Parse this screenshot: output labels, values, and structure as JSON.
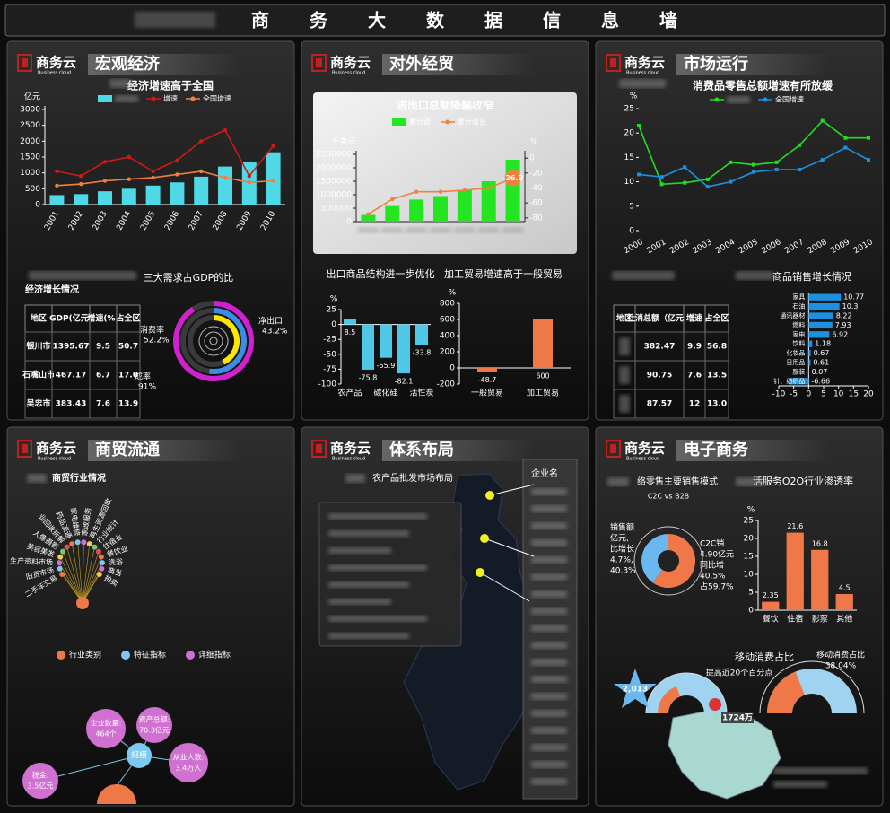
{
  "header": {
    "title": "商务大数据信息墙"
  },
  "brand": {
    "name": "商务云",
    "tagline": "Business cloud"
  },
  "panels": [
    {
      "title": "宏观经济"
    },
    {
      "title": "对外经贸"
    },
    {
      "title": "市场运行"
    },
    {
      "title": "商贸流通"
    },
    {
      "title": "体系布局"
    },
    {
      "title": "电子商务"
    }
  ],
  "chart_data": [
    {
      "type": "combo",
      "title": "经济增速高于全国",
      "y_label": "亿元",
      "categories": [
        "2001",
        "2002",
        "2003",
        "2004",
        "2005",
        "2006",
        "2007",
        "2008",
        "2009",
        "2010"
      ],
      "series": [
        {
          "type": "bar",
          "color": "#4fd8e6",
          "values": [
            300,
            330,
            420,
            500,
            600,
            700,
            880,
            1200,
            1350,
            1650
          ]
        },
        {
          "name": "增速",
          "type": "line",
          "color": "#d01818",
          "values": [
            1050,
            900,
            1350,
            1500,
            1050,
            1400,
            2000,
            2350,
            900,
            1850
          ]
        },
        {
          "name": "全国增速",
          "type": "line",
          "color": "#f08040",
          "values": [
            600,
            650,
            750,
            800,
            850,
            950,
            1050,
            850,
            700,
            750
          ]
        }
      ],
      "ylim": [
        0,
        3000
      ],
      "yticks": [
        0,
        500,
        1000,
        1500,
        2000,
        2500,
        3000
      ]
    },
    {
      "type": "rings",
      "title": "三大需求占GDP的比",
      "categories": [
        "消费率",
        "净出口",
        "成率"
      ],
      "values": [
        52.2,
        43.2,
        91
      ],
      "value_labels": [
        "52.2%",
        "43.2%",
        "91%"
      ],
      "colors": [
        "#3a8ee6",
        "#ffe600",
        "#d020d0"
      ]
    },
    {
      "type": "combo",
      "title": "进出口总额降幅收窄",
      "y_label": "千美元",
      "y2_label": "%",
      "categories": [
        null,
        null,
        null,
        null,
        null,
        null,
        null
      ],
      "series": [
        {
          "name": "累计额",
          "type": "bar",
          "color": "#22e622",
          "values": [
            250000,
            580000,
            820000,
            950000,
            1180000,
            1500000,
            2300000
          ]
        },
        {
          "name": "累计增长",
          "type": "line",
          "axis": "y2",
          "color": "#f08040",
          "values": [
            -75,
            -55,
            -45,
            -45,
            -43,
            -40,
            -26.8
          ]
        }
      ],
      "data_labels": "last",
      "ylim": [
        0,
        2500000
      ],
      "yticks": [
        0,
        500000,
        1000000,
        1500000,
        2000000,
        2500000
      ],
      "y2lim": [
        -85,
        5
      ],
      "y2ticks": [
        0,
        -20,
        -40,
        -60,
        -80
      ]
    },
    {
      "type": "bar",
      "title": "出口商品结构进一步优化",
      "y_label": "%",
      "categories": [
        "农产品",
        null,
        "碳化硅",
        null,
        "活性炭"
      ],
      "values": [
        8.5,
        -75.8,
        -55.9,
        -82.1,
        -33.8
      ],
      "color": "#4fc8e8",
      "label_position": "below",
      "ylim": [
        -100,
        25
      ],
      "yticks": [
        25,
        0,
        -25,
        -50,
        -75,
        -100
      ]
    },
    {
      "type": "bar",
      "title": "加工贸易增速高于一般贸易",
      "y_label": "%",
      "categories": [
        "一般贸易",
        "加工贸易"
      ],
      "values": [
        -48.7,
        600
      ],
      "color": "#f07848",
      "label_position": "below",
      "ylim": [
        -200,
        800
      ],
      "yticks": [
        800,
        600,
        400,
        200,
        0,
        -200
      ]
    },
    {
      "type": "line",
      "title": "消费品零售总额增速有所放缓",
      "y_label": "%",
      "categories": [
        "2000",
        "2001",
        "2002",
        "2003",
        "2004",
        "2005",
        "2006",
        "2007",
        "2008",
        "2009",
        "2010"
      ],
      "series": [
        {
          "color": "#22dd22",
          "values": [
            21.5,
            9.5,
            9.8,
            10.5,
            14,
            13.5,
            14,
            17.5,
            22.5,
            19,
            19
          ]
        },
        {
          "name": "全国增速",
          "color": "#1e90e0",
          "values": [
            11.5,
            11,
            13,
            9,
            10,
            12,
            12.5,
            12.5,
            14.5,
            17,
            14.5
          ]
        }
      ],
      "ylim": [
        0,
        25
      ],
      "yticks": [
        0,
        5,
        10,
        15,
        20,
        25
      ]
    },
    {
      "type": "hbar",
      "title": "商品销售增长情况",
      "categories": [
        "家具",
        "石油",
        "通讯器材",
        "燃料",
        "家电",
        "饮料",
        "化妆品",
        "日用品",
        "服装",
        "针、纺织品"
      ],
      "values": [
        10.77,
        10.3,
        8.22,
        7.93,
        6.92,
        1.18,
        0.67,
        0.61,
        0.07,
        -6.66
      ],
      "color": "#1e90e0",
      "xlim": [
        -10,
        20
      ],
      "xticks": [
        -10,
        -5,
        0,
        5,
        10,
        15,
        20
      ]
    },
    {
      "type": "pie",
      "title": "络零售主要销售模式",
      "subtitle": "C2C vs B2B",
      "values": [
        40.3,
        59.7
      ],
      "value_labels": [
        "40.3%",
        "占59.7%"
      ],
      "colors": [
        "#6bb8f0",
        "#f07848"
      ],
      "annotations": [
        [
          "销售额",
          "亿元,",
          "比增长",
          "4.7%,"
        ],
        [
          "C2C销",
          "4.90亿元",
          "同比增",
          "40.5%"
        ]
      ]
    },
    {
      "type": "bar",
      "title": "活服务O2O行业渗透率",
      "y_label": "%",
      "categories": [
        "餐饮",
        "住宿",
        "影票",
        "其他"
      ],
      "values": [
        2.35,
        21.6,
        16.8,
        4.5
      ],
      "color": "#f07848",
      "label_position": "above",
      "ylim": [
        0,
        25
      ],
      "yticks": [
        0,
        5,
        10,
        15,
        20,
        25
      ]
    },
    {
      "type": "gauge",
      "title": "移动消费占比",
      "subtitle": "提高近20个百分点",
      "value": 38.04,
      "value_label": "38.04%",
      "color": "#f07848",
      "track_color": "#9fd3f0"
    }
  ],
  "tables": [
    {
      "title": "经济增长情况",
      "columns": [
        "地区",
        "GDP(亿元)",
        "增速(%)",
        "占全区"
      ],
      "rows": [
        [
          "银川市",
          "1395.67",
          "9.5",
          "50.7"
        ],
        [
          "石嘴山市",
          "467.17",
          "6.7",
          "17.0"
        ],
        [
          "吴忠市",
          "383.43",
          "7.6",
          "13.9"
        ]
      ]
    },
    {
      "columns": [
        "地区",
        "社消总额（亿元）",
        "增速",
        "占全区"
      ],
      "rows": [
        [
          null,
          "382.47",
          "9.9",
          "56.8"
        ],
        [
          null,
          "90.75",
          "7.6",
          "13.5"
        ],
        [
          null,
          "87.57",
          "12",
          "13.0"
        ]
      ]
    }
  ],
  "commerce": {
    "title": "商贸行业情况",
    "labels": [
      "二手车交易",
      "旧货市场",
      "生产资料市场",
      "美容美发",
      "人像摄影",
      "业回收拆解",
      "药品流通",
      "家电维修",
      "家政服务",
      "再生资源回收",
      "行业统计",
      "住宿业",
      "餐饮业",
      "洗浴",
      "典当",
      "拍卖"
    ],
    "legend": [
      {
        "name": "行业类别",
        "color": "#f07848"
      },
      {
        "name": "特征指标",
        "color": "#7cc8f0"
      },
      {
        "name": "详细指标",
        "color": "#d070d0"
      }
    ],
    "scale": {
      "center": "规模",
      "items": [
        {
          "name": "企业数量:",
          "value": "464个"
        },
        {
          "name": "资产总额:",
          "value": "70.3亿元"
        },
        {
          "name": "从业人数:",
          "value": "3.4万人"
        },
        {
          "name": "税金:",
          "value": "3.5亿元"
        }
      ]
    }
  },
  "layout": {
    "title": "农产品批发市场布局",
    "list_header": "企业名"
  },
  "ecommerce": {
    "left_value": "2,013",
    "marker": "1724万"
  }
}
